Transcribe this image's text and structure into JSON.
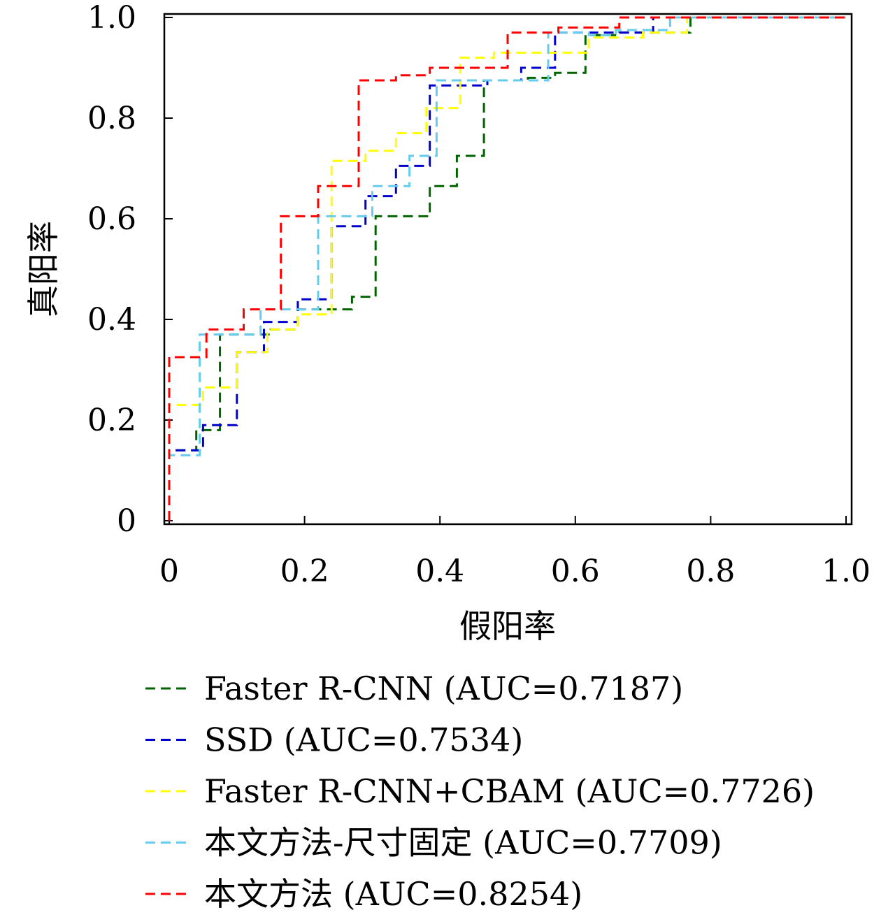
{
  "chart_data": {
    "type": "line",
    "step": true,
    "title": "",
    "xlabel": "假阳率",
    "ylabel": "真阳率",
    "xlim": [
      0,
      1.0
    ],
    "ylim": [
      0,
      1.0
    ],
    "grid": false,
    "legend_placement": "bottom",
    "x_ticks": [
      {
        "value": 0,
        "label": "0"
      },
      {
        "value": 0.2,
        "label": "0.2"
      },
      {
        "value": 0.4,
        "label": "0.4"
      },
      {
        "value": 0.6,
        "label": "0.6"
      },
      {
        "value": 0.8,
        "label": "0.8"
      },
      {
        "value": 1.0,
        "label": "1.0"
      }
    ],
    "y_ticks": [
      {
        "value": 0,
        "label": "0"
      },
      {
        "value": 0.2,
        "label": "0.2"
      },
      {
        "value": 0.4,
        "label": "0.4"
      },
      {
        "value": 0.6,
        "label": "0.6"
      },
      {
        "value": 0.8,
        "label": "0.8"
      },
      {
        "value": 1.0,
        "label": "1.0"
      }
    ],
    "series": [
      {
        "name": "Faster R-CNN (AUC=0.7187)",
        "color": "#006400",
        "points": [
          [
            0,
            0
          ],
          [
            0,
            0.14
          ],
          [
            0.04,
            0.14
          ],
          [
            0.04,
            0.18
          ],
          [
            0.075,
            0.18
          ],
          [
            0.075,
            0.37
          ],
          [
            0.15,
            0.37
          ],
          [
            0.15,
            0.38
          ],
          [
            0.19,
            0.38
          ],
          [
            0.19,
            0.42
          ],
          [
            0.27,
            0.42
          ],
          [
            0.27,
            0.445
          ],
          [
            0.305,
            0.445
          ],
          [
            0.305,
            0.605
          ],
          [
            0.385,
            0.605
          ],
          [
            0.385,
            0.665
          ],
          [
            0.425,
            0.665
          ],
          [
            0.425,
            0.725
          ],
          [
            0.465,
            0.725
          ],
          [
            0.465,
            0.875
          ],
          [
            0.53,
            0.875
          ],
          [
            0.53,
            0.88
          ],
          [
            0.57,
            0.88
          ],
          [
            0.57,
            0.89
          ],
          [
            0.615,
            0.89
          ],
          [
            0.615,
            0.965
          ],
          [
            0.665,
            0.965
          ],
          [
            0.665,
            0.97
          ],
          [
            0.77,
            0.97
          ],
          [
            0.77,
            1.0
          ],
          [
            1.0,
            1.0
          ]
        ]
      },
      {
        "name": "SSD (AUC=0.7534)",
        "color": "#0000cc",
        "points": [
          [
            0,
            0
          ],
          [
            0,
            0.14
          ],
          [
            0.05,
            0.14
          ],
          [
            0.05,
            0.19
          ],
          [
            0.1,
            0.19
          ],
          [
            0.1,
            0.335
          ],
          [
            0.14,
            0.335
          ],
          [
            0.14,
            0.395
          ],
          [
            0.19,
            0.395
          ],
          [
            0.19,
            0.44
          ],
          [
            0.24,
            0.44
          ],
          [
            0.24,
            0.585
          ],
          [
            0.29,
            0.585
          ],
          [
            0.29,
            0.645
          ],
          [
            0.335,
            0.645
          ],
          [
            0.335,
            0.705
          ],
          [
            0.385,
            0.705
          ],
          [
            0.385,
            0.865
          ],
          [
            0.47,
            0.865
          ],
          [
            0.47,
            0.875
          ],
          [
            0.52,
            0.875
          ],
          [
            0.52,
            0.9
          ],
          [
            0.57,
            0.9
          ],
          [
            0.57,
            0.97
          ],
          [
            0.715,
            0.97
          ],
          [
            0.715,
            1.0
          ],
          [
            1.0,
            1.0
          ]
        ]
      },
      {
        "name": "Faster R-CNN+CBAM (AUC=0.7726)",
        "color": "#ffff00",
        "points": [
          [
            0,
            0
          ],
          [
            0,
            0.23
          ],
          [
            0.05,
            0.23
          ],
          [
            0.05,
            0.265
          ],
          [
            0.1,
            0.265
          ],
          [
            0.1,
            0.335
          ],
          [
            0.145,
            0.335
          ],
          [
            0.145,
            0.38
          ],
          [
            0.19,
            0.38
          ],
          [
            0.19,
            0.41
          ],
          [
            0.24,
            0.41
          ],
          [
            0.24,
            0.715
          ],
          [
            0.29,
            0.715
          ],
          [
            0.29,
            0.735
          ],
          [
            0.335,
            0.735
          ],
          [
            0.335,
            0.77
          ],
          [
            0.38,
            0.77
          ],
          [
            0.38,
            0.82
          ],
          [
            0.43,
            0.82
          ],
          [
            0.43,
            0.92
          ],
          [
            0.48,
            0.92
          ],
          [
            0.48,
            0.93
          ],
          [
            0.62,
            0.93
          ],
          [
            0.62,
            0.96
          ],
          [
            0.7,
            0.96
          ],
          [
            0.7,
            0.97
          ],
          [
            0.765,
            0.97
          ],
          [
            0.765,
            1.0
          ],
          [
            1.0,
            1.0
          ]
        ]
      },
      {
        "name": "本文方法-尺寸固定 (AUC=0.7709)",
        "color": "#66ccee",
        "points": [
          [
            0,
            0
          ],
          [
            0,
            0.13
          ],
          [
            0.045,
            0.13
          ],
          [
            0.045,
            0.37
          ],
          [
            0.135,
            0.37
          ],
          [
            0.135,
            0.42
          ],
          [
            0.22,
            0.42
          ],
          [
            0.22,
            0.605
          ],
          [
            0.3,
            0.605
          ],
          [
            0.3,
            0.665
          ],
          [
            0.355,
            0.665
          ],
          [
            0.355,
            0.725
          ],
          [
            0.395,
            0.725
          ],
          [
            0.395,
            0.875
          ],
          [
            0.56,
            0.875
          ],
          [
            0.56,
            0.97
          ],
          [
            0.62,
            0.97
          ],
          [
            0.62,
            0.965
          ],
          [
            0.66,
            0.965
          ],
          [
            0.66,
            0.975
          ],
          [
            0.74,
            0.975
          ],
          [
            0.74,
            1.0
          ],
          [
            1.0,
            1.0
          ]
        ]
      },
      {
        "name": "本文方法 (AUC=0.8254)",
        "color": "#ff0000",
        "points": [
          [
            0,
            0
          ],
          [
            0,
            0.325
          ],
          [
            0.055,
            0.325
          ],
          [
            0.055,
            0.38
          ],
          [
            0.11,
            0.38
          ],
          [
            0.11,
            0.42
          ],
          [
            0.165,
            0.42
          ],
          [
            0.165,
            0.605
          ],
          [
            0.22,
            0.605
          ],
          [
            0.22,
            0.665
          ],
          [
            0.28,
            0.665
          ],
          [
            0.28,
            0.875
          ],
          [
            0.335,
            0.875
          ],
          [
            0.335,
            0.885
          ],
          [
            0.385,
            0.885
          ],
          [
            0.385,
            0.9
          ],
          [
            0.5,
            0.9
          ],
          [
            0.5,
            0.97
          ],
          [
            0.575,
            0.97
          ],
          [
            0.575,
            0.98
          ],
          [
            0.665,
            0.98
          ],
          [
            0.665,
            1.0
          ],
          [
            1.0,
            1.0
          ]
        ]
      }
    ]
  }
}
